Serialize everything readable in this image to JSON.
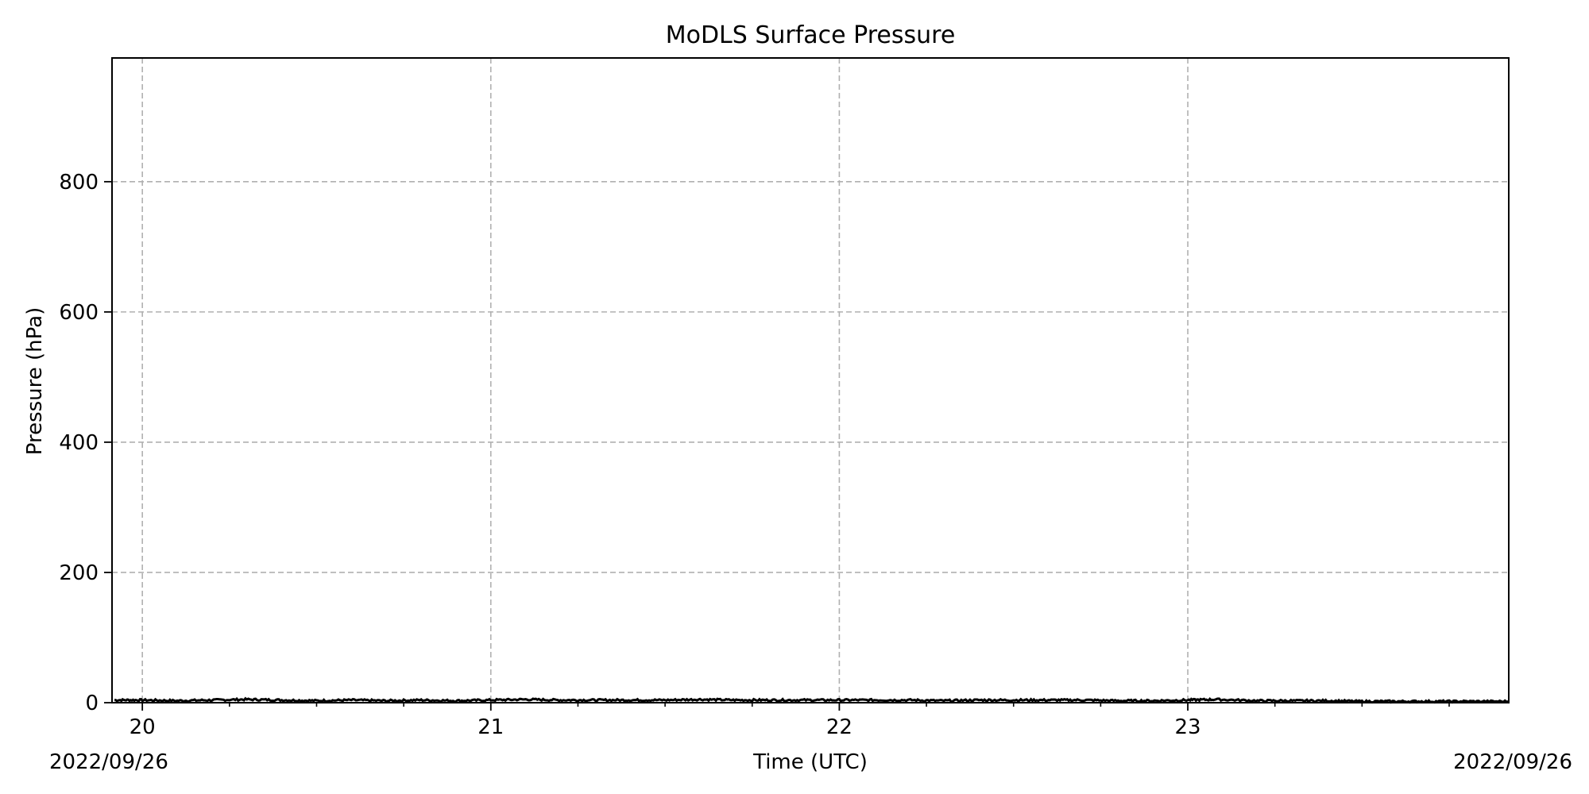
{
  "chart_data": {
    "type": "line",
    "title": "MoDLS Surface Pressure",
    "xlabel": "Time (UTC)",
    "ylabel": "Pressure (hPa)",
    "xlim": [
      19.913,
      23.921
    ],
    "ylim": [
      0,
      990
    ],
    "x_major_ticks": [
      20,
      21,
      22,
      23
    ],
    "x_tick_labels": [
      "20",
      "21",
      "22",
      "23"
    ],
    "x_minor_step": 0.25,
    "y_ticks": [
      0,
      200,
      400,
      600,
      800
    ],
    "y_tick_labels": [
      "0",
      "200",
      "400",
      "600",
      "800"
    ],
    "date_label_left": "2022/09/26",
    "date_label_right": "2022/09/26",
    "grid": true,
    "line_color": "#000000",
    "grid_color": "#b0b0b0",
    "series": [
      {
        "x": [
          19.92,
          20.0,
          20.1,
          20.2,
          20.3,
          20.4,
          20.5,
          20.6,
          20.7,
          20.8,
          20.9,
          21.0,
          21.1,
          21.2,
          21.3,
          21.4,
          21.5,
          21.6,
          21.7,
          21.8,
          21.9,
          22.0,
          22.1,
          22.2,
          22.3,
          22.4,
          22.5,
          22.6,
          22.7,
          22.8,
          22.9,
          23.0,
          23.08,
          23.2,
          23.3,
          23.4,
          23.5,
          23.6,
          23.7,
          23.8,
          23.92
        ],
        "values": [
          4,
          4,
          3,
          4,
          5,
          4,
          3,
          4,
          3,
          4,
          3,
          4,
          5,
          4,
          4,
          4,
          4,
          5,
          4,
          4,
          4,
          4,
          4,
          4,
          3,
          4,
          4,
          4,
          4,
          3,
          3,
          4,
          5,
          3,
          3,
          3,
          2,
          2,
          2,
          2,
          2
        ]
      }
    ]
  }
}
